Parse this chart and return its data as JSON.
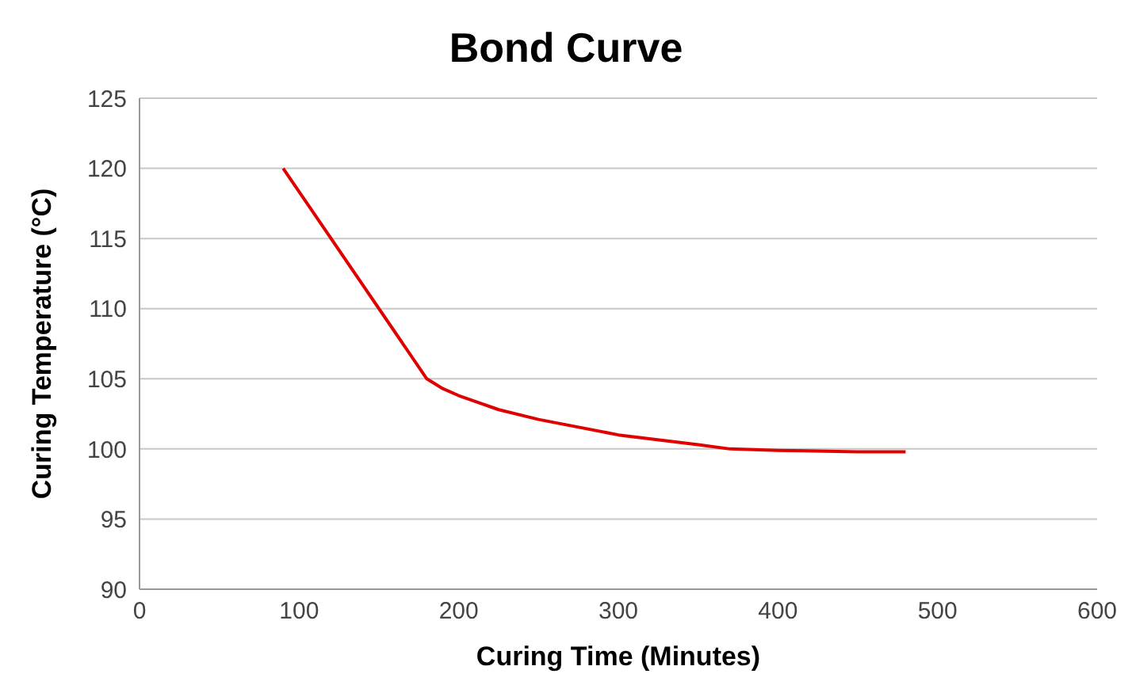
{
  "chart_data": {
    "type": "line",
    "title": "Bond Curve",
    "xlabel": "Curing Time (Minutes)",
    "ylabel": "Curing Temperature (°C)",
    "x": [
      90,
      180,
      190,
      200,
      225,
      250,
      300,
      350,
      370,
      400,
      450,
      480
    ],
    "series": [
      {
        "color": "#e00000",
        "values": [
          120,
          105,
          104.3,
          103.8,
          102.8,
          102.1,
          101,
          100.3,
          100,
          99.9,
          99.8,
          99.8
        ]
      }
    ],
    "xlim": [
      0,
      600
    ],
    "xticks": [
      0,
      100,
      200,
      300,
      400,
      500,
      600
    ],
    "ylim": [
      90,
      125
    ],
    "yticks": [
      90,
      95,
      100,
      105,
      110,
      115,
      120,
      125
    ],
    "grid": "y",
    "marker": "none",
    "line_style": "solid"
  }
}
